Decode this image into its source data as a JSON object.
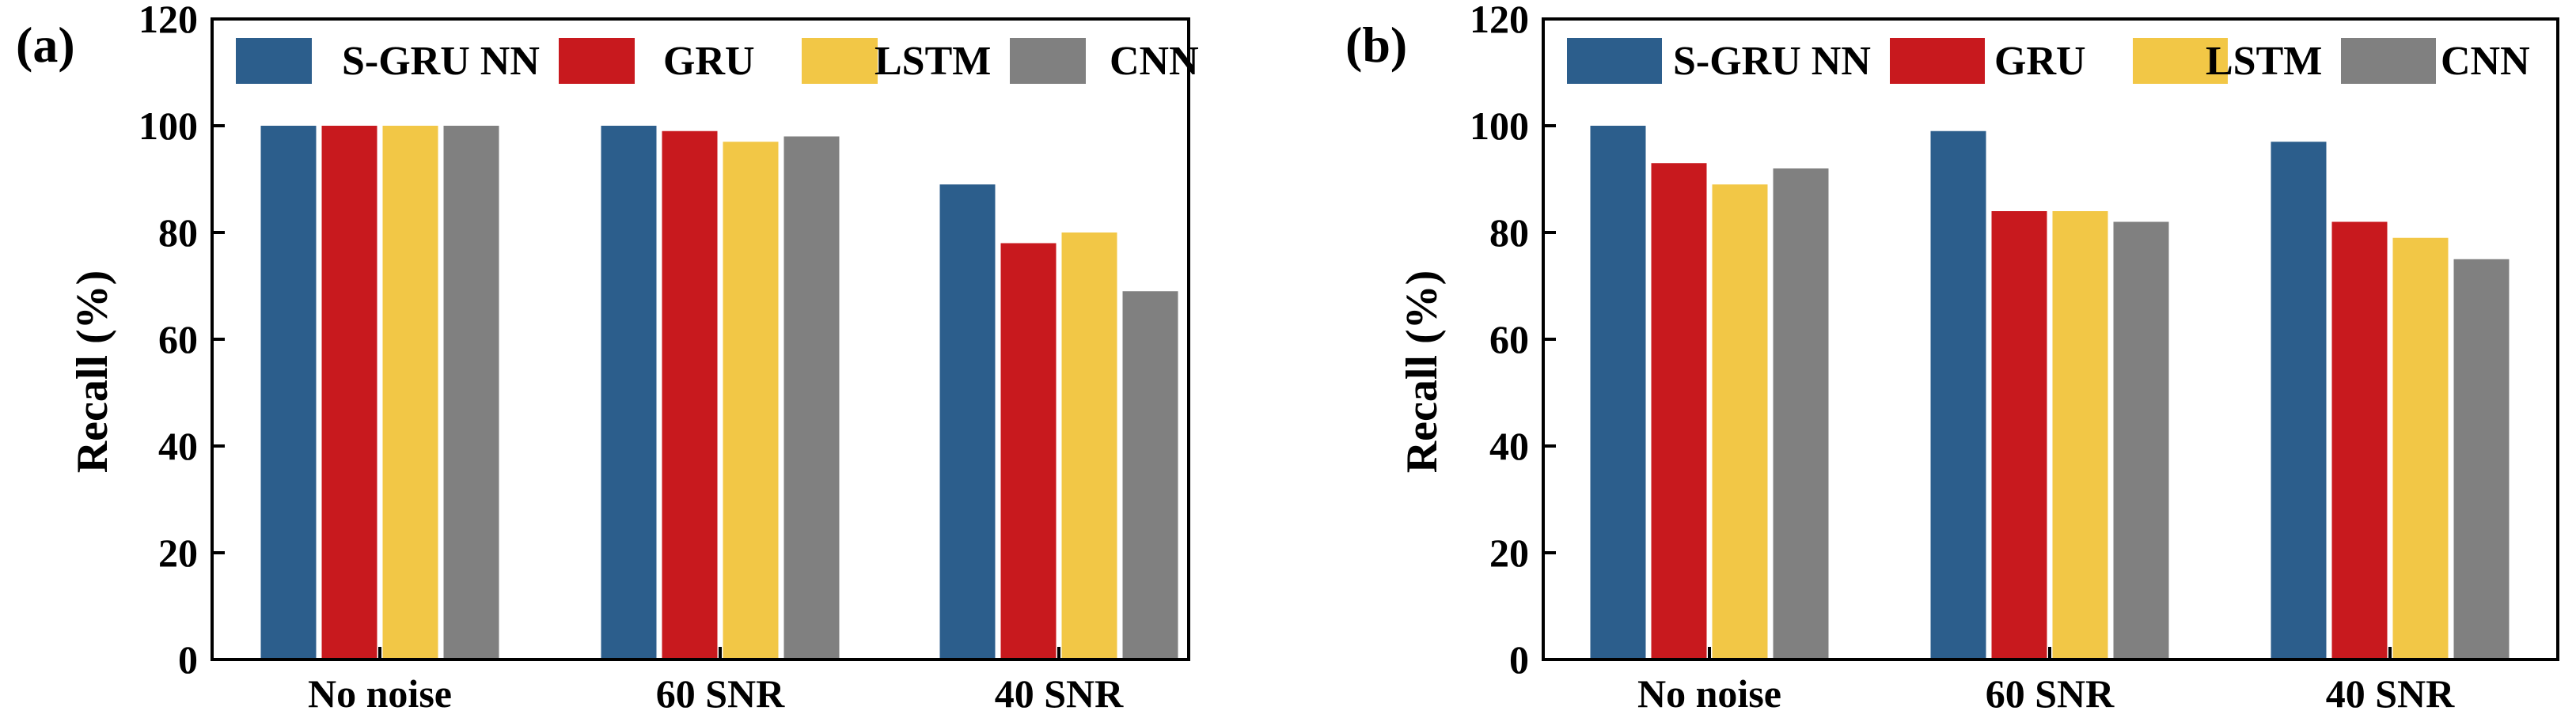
{
  "colors": {
    "S-GRU NN": "#2c5e8c",
    "GRU": "#c8191e",
    "LSTM": "#f2c746",
    "CNN": "#808080"
  },
  "chart_data": [
    {
      "type": "bar",
      "panel_label": "(a)",
      "title": "",
      "xlabel": "",
      "ylabel": "Recall (%)",
      "ylim": [
        0,
        120
      ],
      "yticks": [
        "0",
        "20",
        "40",
        "60",
        "80",
        "100",
        "120"
      ],
      "categories": [
        "No noise",
        "60 SNR",
        "40 SNR"
      ],
      "legend_position": "top",
      "grid": false,
      "series": [
        {
          "name": "S-GRU NN",
          "values": [
            100,
            100,
            89
          ]
        },
        {
          "name": "GRU",
          "values": [
            100,
            99,
            78
          ]
        },
        {
          "name": "LSTM",
          "values": [
            100,
            97,
            80
          ]
        },
        {
          "name": "CNN",
          "values": [
            100,
            98,
            69
          ]
        }
      ]
    },
    {
      "type": "bar",
      "panel_label": "(b)",
      "title": "",
      "xlabel": "",
      "ylabel": "Recall (%)",
      "ylim": [
        0,
        120
      ],
      "yticks": [
        "0",
        "20",
        "40",
        "60",
        "80",
        "100",
        "120"
      ],
      "categories": [
        "No noise",
        "60 SNR",
        "40 SNR"
      ],
      "legend_position": "top",
      "grid": false,
      "series": [
        {
          "name": "S-GRU NN",
          "values": [
            100,
            99,
            97
          ]
        },
        {
          "name": "GRU",
          "values": [
            93,
            84,
            82
          ]
        },
        {
          "name": "LSTM",
          "values": [
            89,
            84,
            79
          ]
        },
        {
          "name": "CNN",
          "values": [
            92,
            82,
            75
          ]
        }
      ]
    }
  ]
}
